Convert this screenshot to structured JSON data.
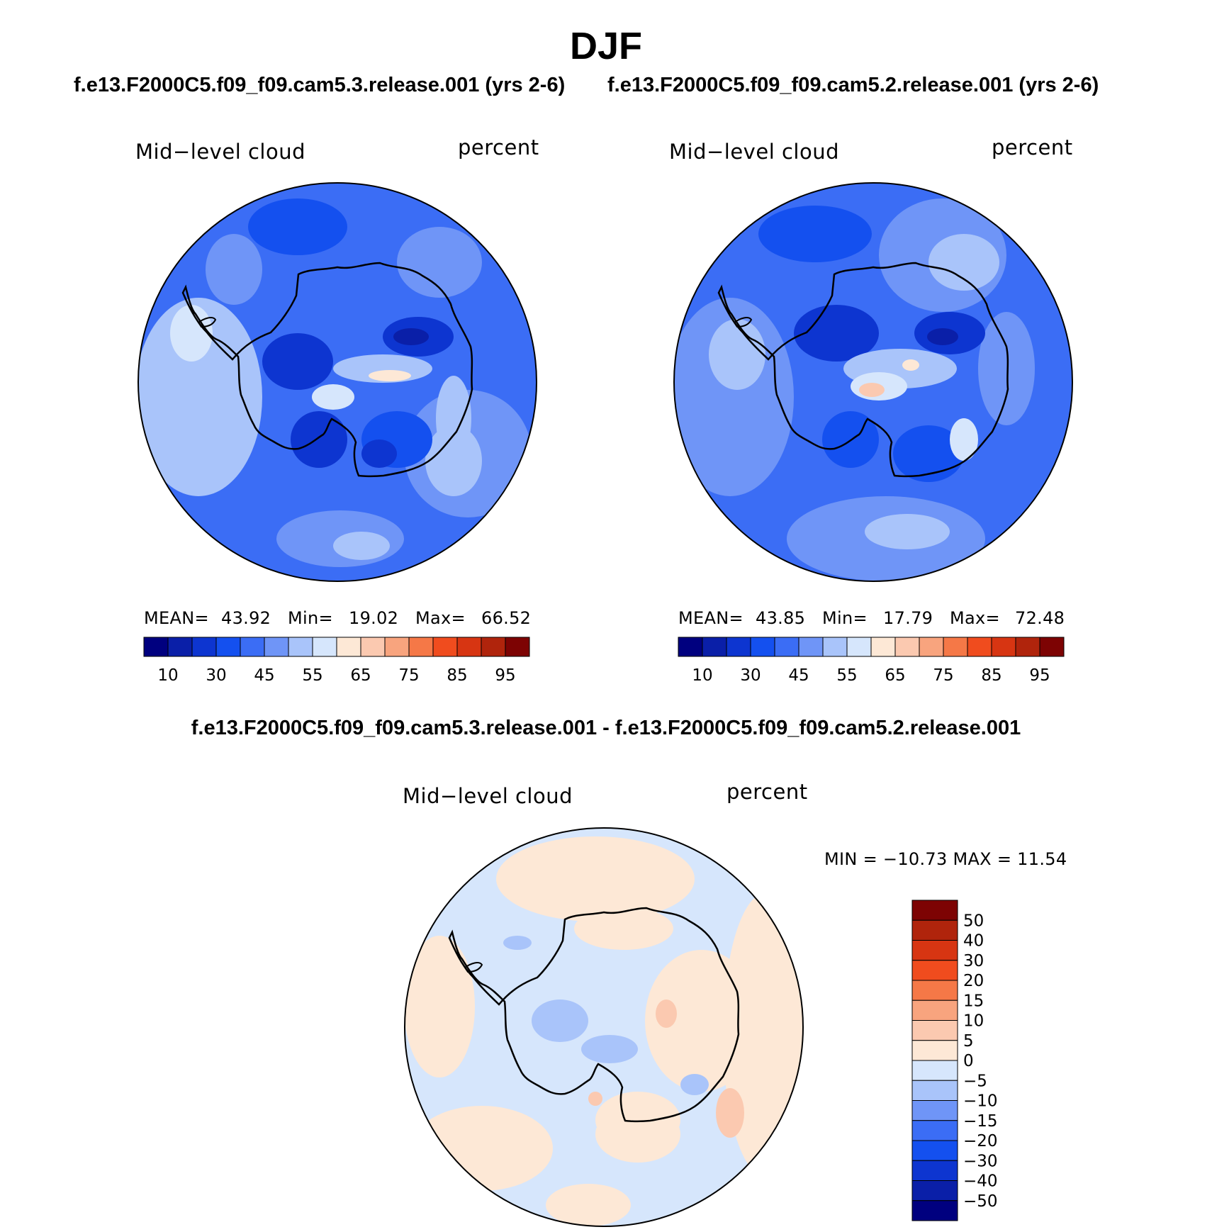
{
  "title": "DJF",
  "panels": [
    {
      "case": "f.e13.F2000C5.f09_f09.cam5.3.release.001 (yrs 2-6)",
      "variable": "Mid−level cloud",
      "units": "percent",
      "stats": {
        "mean_label": "MEAN=",
        "mean": "43.92",
        "min_label": "Min=",
        "min": "19.02",
        "max_label": "Max=",
        "max": "66.52"
      }
    },
    {
      "case": "f.e13.F2000C5.f09_f09.cam5.2.release.001 (yrs 2-6)",
      "variable": "Mid−level cloud",
      "units": "percent",
      "stats": {
        "mean_label": "MEAN=",
        "mean": "43.85",
        "min_label": "Min=",
        "min": "17.79",
        "max_label": "Max=",
        "max": "72.48"
      }
    }
  ],
  "difference": {
    "title": "f.e13.F2000C5.f09_f09.cam5.3.release.001 - f.e13.F2000C5.f09_f09.cam5.2.release.001",
    "variable": "Mid−level cloud",
    "units": "percent",
    "minmax_text": "MIN = −10.73 MAX =   11.54"
  },
  "abs_colorbar": {
    "colors": [
      "#00007f",
      "#0a1fa8",
      "#0d35d0",
      "#1450ef",
      "#3b6df5",
      "#6f95f7",
      "#a9c4fa",
      "#d6e6fc",
      "#fde8d6",
      "#fbc9b0",
      "#f8a47e",
      "#f57847",
      "#f04c1e",
      "#d73512",
      "#b0240c",
      "#7d0303"
    ],
    "ticks": [
      "10",
      "30",
      "45",
      "55",
      "65",
      "75",
      "85",
      "95"
    ]
  },
  "diff_colorbar": {
    "colors": [
      "#7d0303",
      "#b0240c",
      "#d73512",
      "#f04c1e",
      "#f57847",
      "#f8a47e",
      "#fbc9b0",
      "#fde8d6",
      "#d6e6fc",
      "#a9c4fa",
      "#6f95f7",
      "#3b6df5",
      "#1450ef",
      "#0d35d0",
      "#0a1fa8",
      "#00007f"
    ],
    "ticks": [
      "50",
      "40",
      "30",
      "20",
      "15",
      "10",
      "5",
      "0",
      "−5",
      "−10",
      "−15",
      "−20",
      "−30",
      "−40",
      "−50"
    ]
  }
}
